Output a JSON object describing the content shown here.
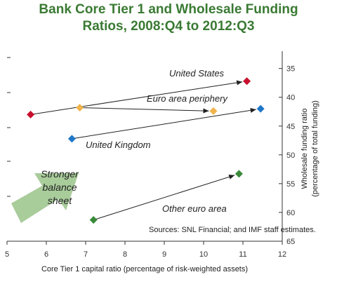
{
  "chart_data": {
    "type": "scatter",
    "title_lines": [
      "Bank Core Tier 1 and Wholesale Funding",
      "Ratios, 2008:Q4 to 2012:Q3"
    ],
    "xlabel": "Core Tier 1 capital ratio (percentage of risk-weighted assets)",
    "ylabel_lines": [
      "Wholesale funding ratio",
      "(percentage of total funding)"
    ],
    "xlim": [
      5,
      12
    ],
    "ylim": [
      65,
      32
    ],
    "x_ticks": [
      "5",
      "6",
      "7",
      "8",
      "9",
      "10",
      "11",
      "12"
    ],
    "y_ticks": [
      "35",
      "40",
      "45",
      "50",
      "55",
      "60",
      "65"
    ],
    "series": [
      {
        "name": "United States",
        "color": "#c8102e",
        "from": [
          5.6,
          43.0
        ],
        "to": [
          11.1,
          37.2
        ]
      },
      {
        "name": "Euro area periphery",
        "color": "#f0b44c",
        "from": [
          6.85,
          41.8
        ],
        "to": [
          10.25,
          42.4
        ]
      },
      {
        "name": "United Kingdom",
        "color": "#1f77c8",
        "from": [
          6.65,
          47.2
        ],
        "to": [
          11.45,
          42.0
        ]
      },
      {
        "name": "Other euro area",
        "color": "#3a8a3a",
        "from": [
          7.2,
          61.3
        ],
        "to": [
          10.9,
          53.3
        ]
      }
    ],
    "annotation_lines": [
      "Stronger",
      "balance",
      "sheet"
    ],
    "arrow_color": "#a9cc9b",
    "source": "Sources: SNL Financial; and IMF staff estimates."
  }
}
